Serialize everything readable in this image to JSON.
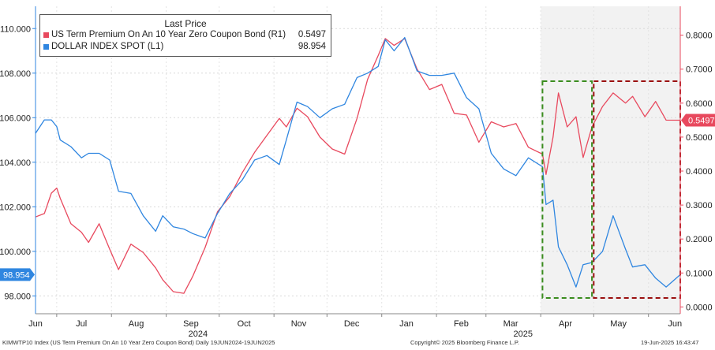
{
  "legend": {
    "title": "Last Price",
    "series": [
      {
        "label": "US Term Premium On An 10 Year Zero Coupon Bond  (R1)",
        "value": "0.5497",
        "color": "#e8495e"
      },
      {
        "label": "DOLLAR INDEX SPOT  (L1)",
        "value": "98.954",
        "color": "#2f86e0"
      }
    ]
  },
  "footer": {
    "left": "KIMWTP10 Index (US Term Premium On An 10 Year Zero Coupon Bond)  Daily 19JUN2024-19JUN2025",
    "center": "Copyright© 2025 Bloomberg Finance L.P.",
    "right": "19-Jun-2025 16:43:47"
  },
  "chart_data": {
    "type": "line",
    "x_months": [
      "Jun",
      "Jul",
      "Aug",
      "Sep",
      "Oct",
      "Nov",
      "Dec",
      "Jan",
      "Feb",
      "Mar",
      "Apr",
      "May",
      "Jun"
    ],
    "year_labels": [
      "2024",
      "2025"
    ],
    "left_axis": {
      "ticks": [
        "98.000",
        "100.000",
        "102.000",
        "104.000",
        "106.000",
        "108.000",
        "110.000"
      ],
      "ylim": [
        97.2,
        111.0
      ]
    },
    "right_axis": {
      "ticks": [
        "0.0000",
        "0.1000",
        "0.2000",
        "0.3000",
        "0.4000",
        "0.5000",
        "0.6000",
        "0.7000",
        "0.8000"
      ],
      "ylim": [
        -0.02,
        0.885
      ]
    },
    "last_value_tags": {
      "left": "98.954",
      "right": "0.5497"
    },
    "series": [
      {
        "name": "US Term Premium On An 10 Year Zero Coupon Bond",
        "axis": "right",
        "color": "#e8495e",
        "x": [
          "2024-06-19",
          "2024-06-24",
          "2024-06-28",
          "2024-07-01",
          "2024-07-03",
          "2024-07-09",
          "2024-07-15",
          "2024-07-19",
          "2024-07-25",
          "2024-07-31",
          "2024-08-05",
          "2024-08-12",
          "2024-08-19",
          "2024-08-26",
          "2024-08-30",
          "2024-09-05",
          "2024-09-11",
          "2024-09-16",
          "2024-09-23",
          "2024-09-30",
          "2024-10-07",
          "2024-10-14",
          "2024-10-21",
          "2024-10-28",
          "2024-11-04",
          "2024-11-08",
          "2024-11-14",
          "2024-11-20",
          "2024-11-27",
          "2024-12-04",
          "2024-12-11",
          "2024-12-18",
          "2024-12-24",
          "2024-12-30",
          "2025-01-03",
          "2025-01-08",
          "2025-01-14",
          "2025-01-21",
          "2025-01-28",
          "2025-02-04",
          "2025-02-11",
          "2025-02-18",
          "2025-02-25",
          "2025-03-04",
          "2025-03-11",
          "2025-03-18",
          "2025-03-25",
          "2025-04-02",
          "2025-04-04",
          "2025-04-08",
          "2025-04-11",
          "2025-04-16",
          "2025-04-21",
          "2025-04-25",
          "2025-04-30",
          "2025-05-06",
          "2025-05-12",
          "2025-05-19",
          "2025-05-23",
          "2025-05-30",
          "2025-06-05",
          "2025-06-11",
          "2025-06-19"
        ],
        "values": [
          0.265,
          0.275,
          0.335,
          0.35,
          0.32,
          0.245,
          0.22,
          0.19,
          0.245,
          0.17,
          0.11,
          0.185,
          0.16,
          0.115,
          0.08,
          0.045,
          0.04,
          0.09,
          0.175,
          0.28,
          0.325,
          0.395,
          0.455,
          0.505,
          0.555,
          0.53,
          0.585,
          0.56,
          0.5,
          0.465,
          0.45,
          0.555,
          0.67,
          0.74,
          0.79,
          0.77,
          0.79,
          0.7,
          0.64,
          0.655,
          0.57,
          0.565,
          0.485,
          0.545,
          0.53,
          0.54,
          0.47,
          0.45,
          0.39,
          0.5,
          0.63,
          0.53,
          0.56,
          0.44,
          0.53,
          0.59,
          0.63,
          0.6,
          0.62,
          0.56,
          0.605,
          0.55,
          0.5497
        ]
      },
      {
        "name": "DOLLAR INDEX SPOT",
        "axis": "left",
        "color": "#2f86e0",
        "x": [
          "2024-06-19",
          "2024-06-24",
          "2024-06-28",
          "2024-07-01",
          "2024-07-03",
          "2024-07-09",
          "2024-07-15",
          "2024-07-19",
          "2024-07-25",
          "2024-07-31",
          "2024-08-05",
          "2024-08-12",
          "2024-08-19",
          "2024-08-26",
          "2024-08-30",
          "2024-09-05",
          "2024-09-11",
          "2024-09-16",
          "2024-09-23",
          "2024-09-30",
          "2024-10-07",
          "2024-10-14",
          "2024-10-21",
          "2024-10-28",
          "2024-11-04",
          "2024-11-08",
          "2024-11-14",
          "2024-11-20",
          "2024-11-27",
          "2024-12-04",
          "2024-12-11",
          "2024-12-18",
          "2024-12-24",
          "2024-12-30",
          "2025-01-03",
          "2025-01-08",
          "2025-01-14",
          "2025-01-21",
          "2025-01-28",
          "2025-02-04",
          "2025-02-11",
          "2025-02-18",
          "2025-02-25",
          "2025-03-04",
          "2025-03-11",
          "2025-03-18",
          "2025-03-25",
          "2025-04-02",
          "2025-04-04",
          "2025-04-08",
          "2025-04-11",
          "2025-04-16",
          "2025-04-21",
          "2025-04-25",
          "2025-04-30",
          "2025-05-06",
          "2025-05-12",
          "2025-05-19",
          "2025-05-23",
          "2025-05-30",
          "2025-06-05",
          "2025-06-11",
          "2025-06-19"
        ],
        "values": [
          105.3,
          105.9,
          105.9,
          105.6,
          105.0,
          104.7,
          104.2,
          104.4,
          104.4,
          104.1,
          102.7,
          102.6,
          101.6,
          100.9,
          101.6,
          101.1,
          101.0,
          100.8,
          100.6,
          101.7,
          102.6,
          103.2,
          104.1,
          104.3,
          103.9,
          105.0,
          106.7,
          106.5,
          106.0,
          106.4,
          106.6,
          107.8,
          108.0,
          108.3,
          109.5,
          109.0,
          109.6,
          108.1,
          107.9,
          107.9,
          108.0,
          106.9,
          106.4,
          104.4,
          103.7,
          103.4,
          104.2,
          103.8,
          102.1,
          102.3,
          100.2,
          99.4,
          98.4,
          99.4,
          99.5,
          100.0,
          101.6,
          100.1,
          99.3,
          99.4,
          98.8,
          98.4,
          98.954
        ]
      }
    ],
    "annotations": [
      {
        "type": "shaded-region",
        "from": "2025-04-01",
        "to": "2025-06-19"
      },
      {
        "type": "dashed-box",
        "color": "#3a8c1e",
        "from": "2025-04-02",
        "to": "2025-04-30"
      },
      {
        "type": "dashed-box",
        "color": "#9a0f0f",
        "from": "2025-05-01",
        "to": "2025-06-19"
      }
    ]
  }
}
